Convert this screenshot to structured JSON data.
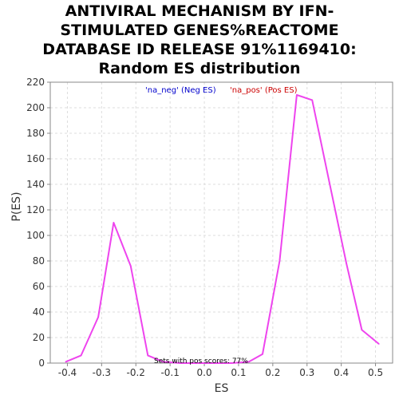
{
  "chart_data": {
    "type": "line",
    "title": "ANTIVIRAL MECHANISM BY IFN-\nSTIMULATED GENES%REACTOME\nDATABASE ID RELEASE 91%1169410:\nRandom ES distribution",
    "xlabel": "ES",
    "ylabel": "P(ES)",
    "xlim": [
      -0.45,
      0.55
    ],
    "ylim": [
      0,
      220
    ],
    "x_ticks": [
      "-0.4",
      "-0.3",
      "-0.2",
      "-0.1",
      "0.0",
      "0.1",
      "0.2",
      "0.3",
      "0.4",
      "0.5"
    ],
    "y_ticks": [
      "0",
      "20",
      "40",
      "60",
      "80",
      "100",
      "120",
      "140",
      "160",
      "180",
      "200",
      "220"
    ],
    "grid": true,
    "legend": [
      {
        "label": "'na_neg' (Neg ES)",
        "color": "#0000cc"
      },
      {
        "label": "'na_pos' (Pos ES)",
        "color": "#cc0000"
      }
    ],
    "annotation": "Sets with pos scores: 77%",
    "series": [
      {
        "color": "#ee44ee",
        "x": [
          -0.405,
          -0.36,
          -0.31,
          -0.265,
          -0.215,
          -0.165,
          -0.12,
          -0.07,
          -0.02,
          0.03,
          0.08,
          0.13,
          0.17,
          0.22,
          0.27,
          0.315,
          0.365,
          0.415,
          0.46,
          0.51
        ],
        "y": [
          1,
          6,
          36,
          110,
          76,
          6,
          1,
          0,
          0,
          0,
          0,
          1,
          7,
          80,
          210,
          206,
          142,
          78,
          26,
          15
        ]
      }
    ]
  }
}
